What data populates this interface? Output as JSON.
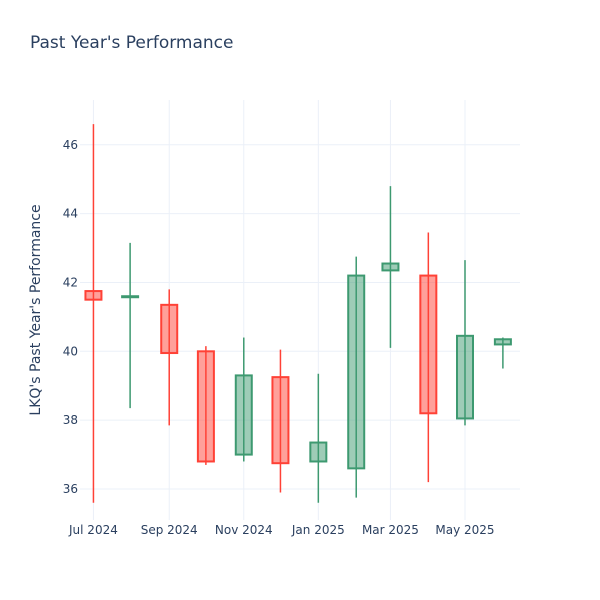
{
  "title": "Past Year's Performance",
  "colors": {
    "increasing_line": "#3d9970",
    "increasing_fill": "rgba(61,153,112,0.5)",
    "decreasing_line": "#ff4136",
    "decreasing_fill": "rgba(255,65,54,0.5)",
    "grid": "#ebf0f8",
    "text": "#2a3f5f"
  },
  "chart_data": {
    "type": "candlestick",
    "title": "Past Year's Performance",
    "xlabel": "",
    "ylabel": "LKQ's Past Year's Performance",
    "x_tick_labels": [
      "Jul 2024",
      "Sep 2024",
      "Nov 2024",
      "Jan 2025",
      "Mar 2025",
      "May 2025"
    ],
    "x_tick_dates": [
      "2024-07-01",
      "2024-09-01",
      "2024-11-01",
      "2025-01-01",
      "2025-03-01",
      "2025-05-01"
    ],
    "y_ticks": [
      36,
      38,
      40,
      42,
      44,
      46
    ],
    "ylim": [
      35.1,
      47.3
    ],
    "xlim": [
      "2024-06-20",
      "2025-06-15"
    ],
    "grid": true,
    "candles": [
      {
        "date": "2024-07-01",
        "open": 41.75,
        "high": 46.6,
        "low": 35.6,
        "close": 41.5
      },
      {
        "date": "2024-07-31",
        "open": 41.6,
        "high": 43.15,
        "low": 38.35,
        "close": 41.6
      },
      {
        "date": "2024-09-01",
        "open": 41.35,
        "high": 41.8,
        "low": 37.85,
        "close": 39.95
      },
      {
        "date": "2024-10-01",
        "open": 40.0,
        "high": 40.15,
        "low": 36.7,
        "close": 36.8
      },
      {
        "date": "2024-11-01",
        "open": 37.0,
        "high": 40.4,
        "low": 36.8,
        "close": 39.3
      },
      {
        "date": "2024-12-01",
        "open": 39.25,
        "high": 40.05,
        "low": 35.9,
        "close": 36.75
      },
      {
        "date": "2025-01-01",
        "open": 36.8,
        "high": 39.35,
        "low": 35.6,
        "close": 37.35
      },
      {
        "date": "2025-02-01",
        "open": 36.6,
        "high": 42.75,
        "low": 35.75,
        "close": 42.2
      },
      {
        "date": "2025-03-01",
        "open": 42.35,
        "high": 44.8,
        "low": 40.1,
        "close": 42.55
      },
      {
        "date": "2025-04-01",
        "open": 42.2,
        "high": 43.45,
        "low": 36.2,
        "close": 38.2
      },
      {
        "date": "2025-05-01",
        "open": 38.05,
        "high": 42.65,
        "low": 37.85,
        "close": 40.45
      },
      {
        "date": "2025-06-01",
        "open": 40.2,
        "high": 40.4,
        "low": 39.5,
        "close": 40.35
      }
    ]
  }
}
